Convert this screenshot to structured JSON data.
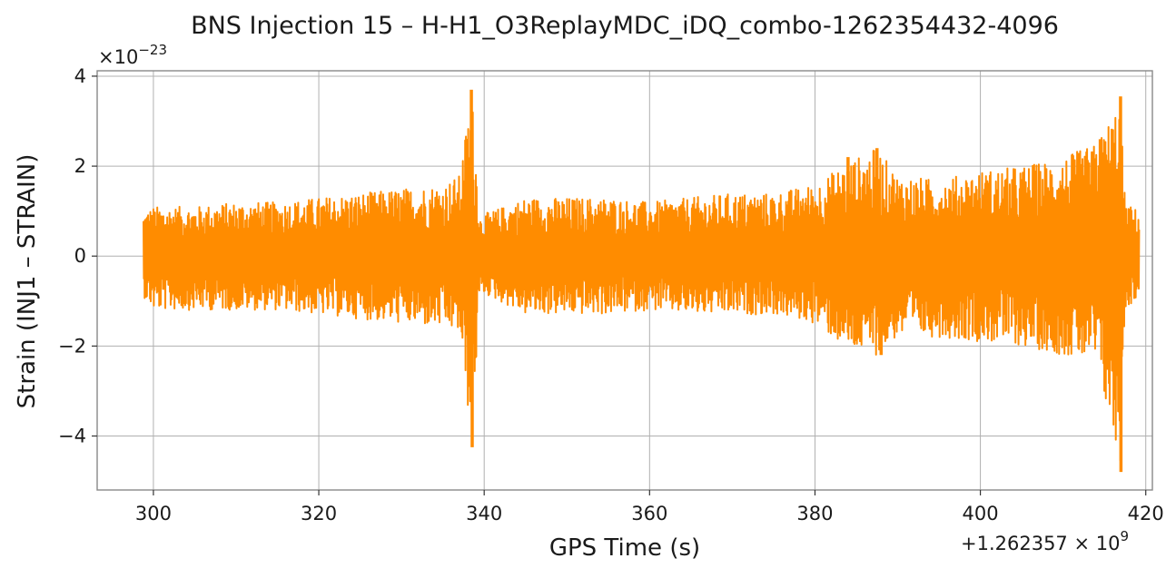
{
  "colors": {
    "series": "#ff8c00",
    "grid": "#b0b0b0",
    "frame": "#888888"
  },
  "chart_data": {
    "type": "line",
    "title": "BNS Injection 15 – H-H1_O3ReplayMDC_iDQ_combo-1262354432-4096",
    "xlabel": "GPS Time (s)",
    "ylabel": "Strain (INJ1 – STRAIN)",
    "x_offset_label": "+1.262357 × 10",
    "x_offset_exponent": "9",
    "y_multiplier_label": "×10",
    "y_multiplier_exponent": "−23",
    "xlim": [
      293.2,
      420.8
    ],
    "ylim": [
      -5.2,
      4.12
    ],
    "grid": true,
    "legend": "none",
    "xticks": [
      {
        "value": 300,
        "label": "300"
      },
      {
        "value": 320,
        "label": "320"
      },
      {
        "value": 340,
        "label": "340"
      },
      {
        "value": 360,
        "label": "360"
      },
      {
        "value": 380,
        "label": "380"
      },
      {
        "value": 400,
        "label": "400"
      },
      {
        "value": 420,
        "label": "420"
      }
    ],
    "yticks": [
      {
        "value": 4,
        "label": "4"
      },
      {
        "value": 2,
        "label": "2"
      },
      {
        "value": 0,
        "label": "0"
      },
      {
        "value": -2,
        "label": "−2"
      },
      {
        "value": -4,
        "label": "−4"
      }
    ],
    "series": [
      {
        "color": "#ff8c00",
        "description_note": "dense oscillating strain time series; values are approximate envelope samples",
        "x_range": [
          298.8,
          419.2
        ],
        "envelope": [
          [
            298.8,
            1.0,
            -0.9
          ],
          [
            300,
            1.1,
            -1.2
          ],
          [
            305,
            1.1,
            -1.2
          ],
          [
            310,
            1.2,
            -1.2
          ],
          [
            315,
            1.2,
            -1.2
          ],
          [
            320,
            1.3,
            -1.3
          ],
          [
            325,
            1.4,
            -1.4
          ],
          [
            330,
            1.5,
            -1.5
          ],
          [
            335,
            1.6,
            -1.6
          ],
          [
            337,
            1.8,
            -1.7
          ],
          [
            338.5,
            3.7,
            -4.2
          ],
          [
            339.5,
            0.9,
            -0.8
          ],
          [
            345,
            1.3,
            -1.3
          ],
          [
            350,
            1.3,
            -1.3
          ],
          [
            355,
            1.3,
            -1.3
          ],
          [
            360,
            1.2,
            -1.2
          ],
          [
            365,
            1.3,
            -1.3
          ],
          [
            370,
            1.4,
            -1.3
          ],
          [
            375,
            1.4,
            -1.3
          ],
          [
            380,
            1.6,
            -1.5
          ],
          [
            384,
            2.1,
            -2.1
          ],
          [
            387.5,
            2.4,
            -2.2
          ],
          [
            390,
            1.8,
            -1.8
          ],
          [
            395,
            1.7,
            -1.8
          ],
          [
            400,
            1.9,
            -1.9
          ],
          [
            405,
            2.0,
            -2.0
          ],
          [
            410,
            2.2,
            -2.2
          ],
          [
            414,
            2.5,
            -2.4
          ],
          [
            416.9,
            3.5,
            -4.8
          ],
          [
            417.5,
            1.2,
            -1.2
          ],
          [
            419.2,
            1.0,
            -0.9
          ]
        ],
        "spikes": [
          [
            338.45,
            3.7
          ],
          [
            338.55,
            -4.25
          ],
          [
            338.5,
            2.7
          ],
          [
            416.95,
            3.55
          ],
          [
            417.0,
            -4.8
          ],
          [
            416.9,
            2.9
          ],
          [
            387.5,
            2.4
          ],
          [
            384.0,
            2.2
          ],
          [
            388.0,
            -2.2
          ],
          [
            414.5,
            2.6
          ]
        ]
      }
    ]
  }
}
